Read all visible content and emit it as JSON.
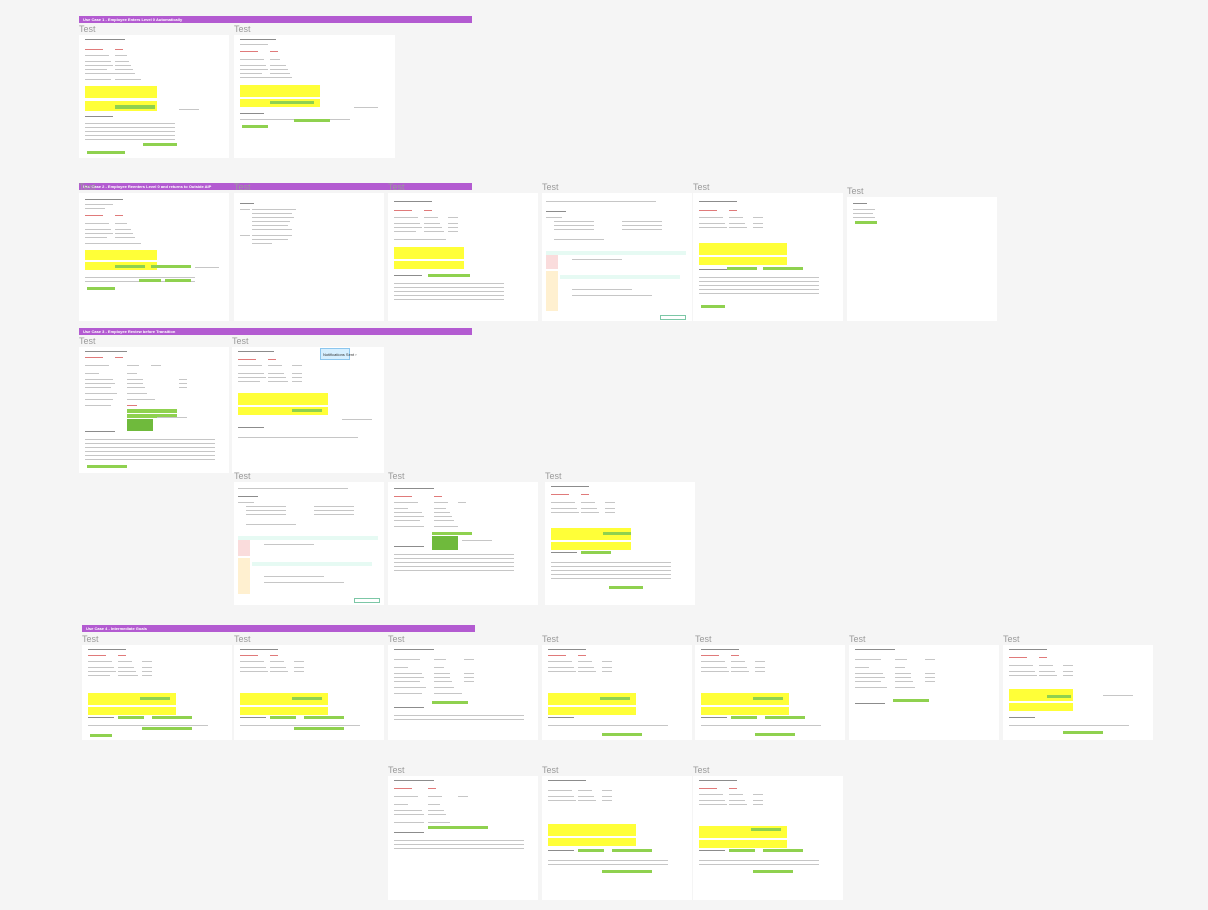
{
  "sections": [
    {
      "id": "uc1",
      "title": "Use Case 1 - Employee Enters Level 0 Automatically"
    },
    {
      "id": "uc2",
      "title": "Use Case 2 - Employee Reenters Level 0 and returns to Outside AIP"
    },
    {
      "id": "uc3",
      "title": "Use Case 3 - Employee Review before Transition"
    },
    {
      "id": "uc4",
      "title": "Use Case 4 - Intermediate Goals"
    }
  ],
  "frame_label": "Test",
  "notification_button": "Notifications Sent ›",
  "colors": {
    "section_bar": "#b35bd1",
    "highlight": "#ffff38",
    "action": "#8fd14f",
    "canvas": "#f5f5f5",
    "frame_label": "#9a9a9a"
  }
}
